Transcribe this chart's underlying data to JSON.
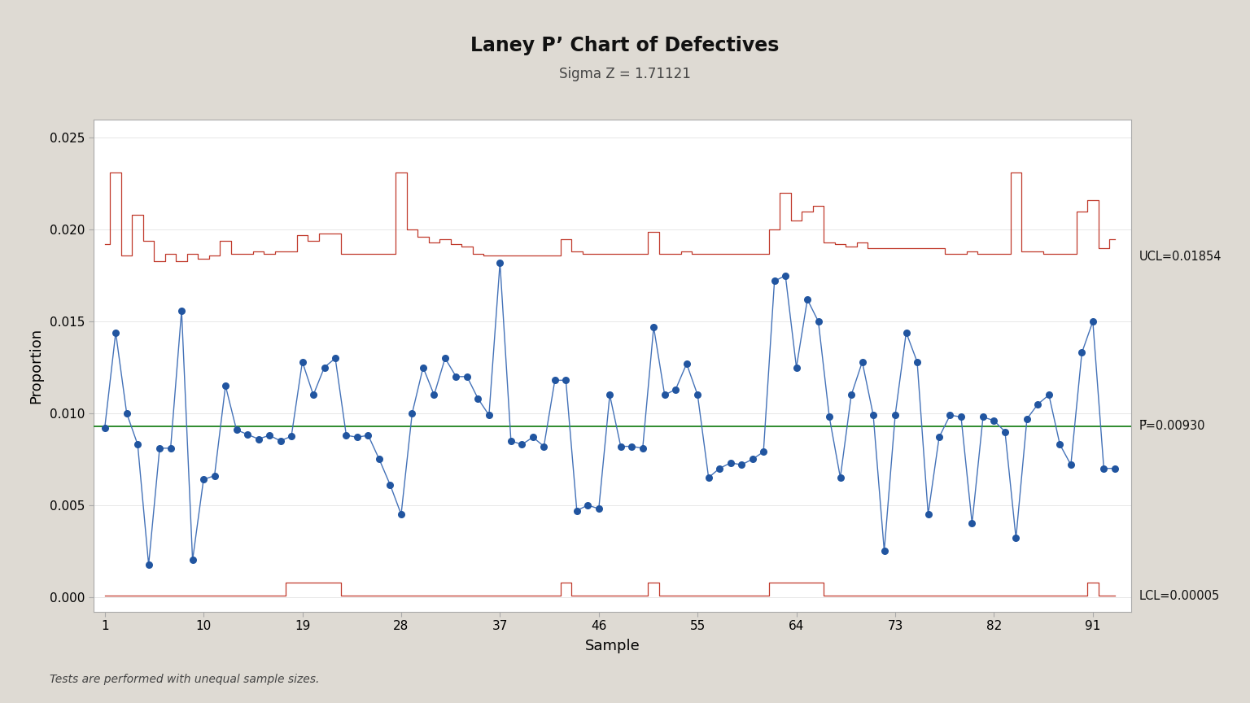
{
  "title": "Laney P’ Chart of Defectives",
  "subtitle": "Sigma Z = 1.71121",
  "xlabel": "Sample",
  "ylabel": "Proportion",
  "p_bar": 0.0093,
  "ucl_label": "UCL=0.01854",
  "lcl_label": "LCL=0.00005",
  "pbar_label": "P̅=0.00930",
  "ucl_avg": 0.01854,
  "lcl_avg": 5e-05,
  "xticks": [
    1,
    10,
    19,
    28,
    37,
    46,
    55,
    64,
    73,
    82,
    91
  ],
  "ylim": [
    -0.0008,
    0.026
  ],
  "yticks": [
    0.0,
    0.005,
    0.01,
    0.015,
    0.02,
    0.025
  ],
  "background_color": "#dedad3",
  "plot_bg_color": "#ffffff",
  "data_line_color": "#4472b8",
  "data_marker_color": "#2155a0",
  "ucl_line_color": "#c0392b",
  "cl_line_color": "#2e8b2e",
  "note": "Tests are performed with unequal sample sizes.",
  "proportions": [
    0.0092,
    0.0144,
    0.01,
    0.0083,
    0.00175,
    0.0081,
    0.0081,
    0.0156,
    0.002,
    0.0064,
    0.0066,
    0.0115,
    0.0091,
    0.00885,
    0.0086,
    0.0088,
    0.0085,
    0.00875,
    0.0128,
    0.011,
    0.0125,
    0.013,
    0.0088,
    0.0087,
    0.0088,
    0.0075,
    0.0061,
    0.0045,
    0.01,
    0.0125,
    0.011,
    0.013,
    0.012,
    0.012,
    0.0108,
    0.0099,
    0.0182,
    0.0085,
    0.0083,
    0.0087,
    0.0082,
    0.0118,
    0.0118,
    0.0047,
    0.005,
    0.0048,
    0.011,
    0.0082,
    0.0082,
    0.0081,
    0.0147,
    0.011,
    0.0113,
    0.0127,
    0.011,
    0.0065,
    0.007,
    0.0073,
    0.0072,
    0.0075,
    0.0079,
    0.0172,
    0.0175,
    0.0125,
    0.0162,
    0.015,
    0.0098,
    0.0065,
    0.011,
    0.0128,
    0.0099,
    0.0025,
    0.0099,
    0.0144,
    0.0128,
    0.0045,
    0.0087,
    0.0099,
    0.0098,
    0.004,
    0.0098,
    0.0096,
    0.009,
    0.0032,
    0.0097,
    0.0105,
    0.011,
    0.0083,
    0.0072,
    0.0133,
    0.015,
    0.007,
    0.007
  ],
  "ucl_values": [
    0.0192,
    0.0231,
    0.0186,
    0.0208,
    0.0194,
    0.0183,
    0.0187,
    0.0183,
    0.0187,
    0.0184,
    0.0186,
    0.0194,
    0.0187,
    0.0187,
    0.0188,
    0.0187,
    0.0188,
    0.0188,
    0.0197,
    0.0194,
    0.0198,
    0.0198,
    0.0187,
    0.0187,
    0.0187,
    0.0187,
    0.0187,
    0.0231,
    0.02,
    0.0196,
    0.0193,
    0.0195,
    0.0192,
    0.0191,
    0.0187,
    0.0186,
    0.0186,
    0.0186,
    0.0186,
    0.0186,
    0.0186,
    0.0186,
    0.0195,
    0.0188,
    0.0187,
    0.0187,
    0.0187,
    0.0187,
    0.0187,
    0.0187,
    0.0199,
    0.0187,
    0.0187,
    0.0188,
    0.0187,
    0.0187,
    0.0187,
    0.0187,
    0.0187,
    0.0187,
    0.0187,
    0.02,
    0.022,
    0.0205,
    0.021,
    0.0213,
    0.0193,
    0.0192,
    0.0191,
    0.0193,
    0.019,
    0.019,
    0.019,
    0.019,
    0.019,
    0.019,
    0.019,
    0.0187,
    0.0187,
    0.0188,
    0.0187,
    0.0187,
    0.0187,
    0.0231,
    0.0188,
    0.0188,
    0.0187,
    0.0187,
    0.0187,
    0.021,
    0.0216,
    0.019,
    0.0195
  ],
  "lcl_values": [
    5e-05,
    5e-05,
    5e-05,
    5e-05,
    5e-05,
    5e-05,
    5e-05,
    5e-05,
    5e-05,
    5e-05,
    5e-05,
    5e-05,
    5e-05,
    5e-05,
    5e-05,
    5e-05,
    5e-05,
    0.0008,
    0.0008,
    0.0008,
    0.0008,
    0.0008,
    5e-05,
    5e-05,
    5e-05,
    5e-05,
    5e-05,
    5e-05,
    5e-05,
    5e-05,
    5e-05,
    5e-05,
    5e-05,
    5e-05,
    5e-05,
    5e-05,
    5e-05,
    5e-05,
    5e-05,
    5e-05,
    5e-05,
    5e-05,
    0.0008,
    5e-05,
    5e-05,
    5e-05,
    5e-05,
    5e-05,
    5e-05,
    5e-05,
    0.0008,
    5e-05,
    5e-05,
    5e-05,
    5e-05,
    5e-05,
    5e-05,
    5e-05,
    5e-05,
    5e-05,
    5e-05,
    0.0008,
    0.0008,
    0.0008,
    0.0008,
    0.0008,
    5e-05,
    5e-05,
    5e-05,
    5e-05,
    5e-05,
    5e-05,
    5e-05,
    5e-05,
    5e-05,
    5e-05,
    5e-05,
    5e-05,
    5e-05,
    5e-05,
    5e-05,
    5e-05,
    5e-05,
    5e-05,
    5e-05,
    5e-05,
    5e-05,
    5e-05,
    5e-05,
    5e-05,
    0.0008,
    5e-05,
    5e-05
  ]
}
